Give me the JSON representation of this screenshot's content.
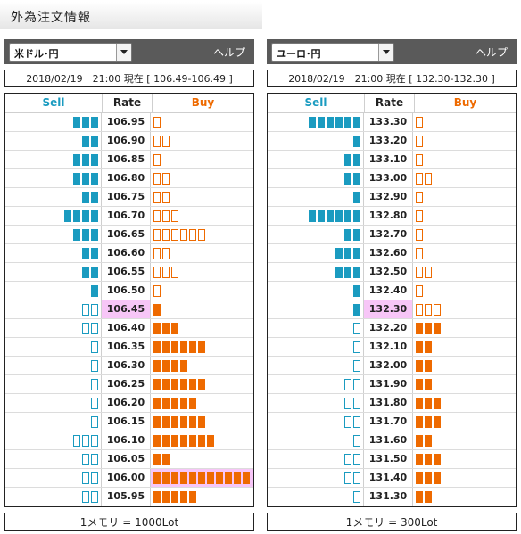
{
  "page": {
    "title": "外為注文情報"
  },
  "colors": {
    "sell": "#1a9bc0",
    "buy": "#ee6a00",
    "current_rate_bg": "#f7c6f7",
    "header_bg": "#5a5a5a"
  },
  "icons": {
    "dropdown": "chevron-down-icon"
  },
  "panels": [
    {
      "pair": "米ドル･円",
      "help": "ヘルプ",
      "status": "2018/02/19　21:00 現在 [ 106.49-106.49 ]",
      "headers": {
        "sell": "Sell",
        "rate": "Rate",
        "buy": "Buy"
      },
      "footer": "1メモリ = 1000Lot",
      "rows": [
        {
          "rate": "106.95",
          "sell": 3,
          "sell_style": "filled",
          "buy": 1,
          "buy_style": "outline"
        },
        {
          "rate": "106.90",
          "sell": 2,
          "sell_style": "filled",
          "buy": 2,
          "buy_style": "outline"
        },
        {
          "rate": "106.85",
          "sell": 3,
          "sell_style": "filled",
          "buy": 1,
          "buy_style": "outline"
        },
        {
          "rate": "106.80",
          "sell": 3,
          "sell_style": "filled",
          "buy": 2,
          "buy_style": "outline"
        },
        {
          "rate": "106.75",
          "sell": 2,
          "sell_style": "filled",
          "buy": 2,
          "buy_style": "outline"
        },
        {
          "rate": "106.70",
          "sell": 4,
          "sell_style": "filled",
          "buy": 3,
          "buy_style": "outline"
        },
        {
          "rate": "106.65",
          "sell": 3,
          "sell_style": "filled",
          "buy": 6,
          "buy_style": "outline"
        },
        {
          "rate": "106.60",
          "sell": 2,
          "sell_style": "filled",
          "buy": 2,
          "buy_style": "outline"
        },
        {
          "rate": "106.55",
          "sell": 2,
          "sell_style": "filled",
          "buy": 3,
          "buy_style": "outline"
        },
        {
          "rate": "106.50",
          "sell": 1,
          "sell_style": "filled",
          "buy": 1,
          "buy_style": "outline"
        },
        {
          "rate": "106.45",
          "sell": 2,
          "sell_style": "outline",
          "buy": 1,
          "buy_style": "filled",
          "current": true
        },
        {
          "rate": "106.40",
          "sell": 2,
          "sell_style": "outline",
          "buy": 3,
          "buy_style": "filled"
        },
        {
          "rate": "106.35",
          "sell": 1,
          "sell_style": "outline",
          "buy": 6,
          "buy_style": "filled"
        },
        {
          "rate": "106.30",
          "sell": 1,
          "sell_style": "outline",
          "buy": 4,
          "buy_style": "filled"
        },
        {
          "rate": "106.25",
          "sell": 1,
          "sell_style": "outline",
          "buy": 6,
          "buy_style": "filled"
        },
        {
          "rate": "106.20",
          "sell": 1,
          "sell_style": "outline",
          "buy": 5,
          "buy_style": "filled"
        },
        {
          "rate": "106.15",
          "sell": 1,
          "sell_style": "outline",
          "buy": 6,
          "buy_style": "filled"
        },
        {
          "rate": "106.10",
          "sell": 3,
          "sell_style": "outline",
          "buy": 7,
          "buy_style": "filled"
        },
        {
          "rate": "106.05",
          "sell": 2,
          "sell_style": "outline",
          "buy": 2,
          "buy_style": "filled"
        },
        {
          "rate": "106.00",
          "sell": 2,
          "sell_style": "outline",
          "buy": 11,
          "buy_style": "filled",
          "highlight": true
        },
        {
          "rate": "105.95",
          "sell": 2,
          "sell_style": "outline",
          "buy": 5,
          "buy_style": "filled"
        }
      ]
    },
    {
      "pair": "ユーロ･円",
      "help": "ヘルプ",
      "status": "2018/02/19　21:00 現在 [ 132.30-132.30 ]",
      "headers": {
        "sell": "Sell",
        "rate": "Rate",
        "buy": "Buy"
      },
      "footer": "1メモリ = 300Lot",
      "rows": [
        {
          "rate": "133.30",
          "sell": 6,
          "sell_style": "filled",
          "buy": 1,
          "buy_style": "outline"
        },
        {
          "rate": "133.20",
          "sell": 1,
          "sell_style": "filled",
          "buy": 1,
          "buy_style": "outline"
        },
        {
          "rate": "133.10",
          "sell": 2,
          "sell_style": "filled",
          "buy": 1,
          "buy_style": "outline"
        },
        {
          "rate": "133.00",
          "sell": 2,
          "sell_style": "filled",
          "buy": 2,
          "buy_style": "outline"
        },
        {
          "rate": "132.90",
          "sell": 1,
          "sell_style": "filled",
          "buy": 1,
          "buy_style": "outline"
        },
        {
          "rate": "132.80",
          "sell": 6,
          "sell_style": "filled",
          "buy": 1,
          "buy_style": "outline"
        },
        {
          "rate": "132.70",
          "sell": 2,
          "sell_style": "filled",
          "buy": 1,
          "buy_style": "outline"
        },
        {
          "rate": "132.60",
          "sell": 3,
          "sell_style": "filled",
          "buy": 1,
          "buy_style": "outline"
        },
        {
          "rate": "132.50",
          "sell": 3,
          "sell_style": "filled",
          "buy": 2,
          "buy_style": "outline"
        },
        {
          "rate": "132.40",
          "sell": 1,
          "sell_style": "filled",
          "buy": 1,
          "buy_style": "outline"
        },
        {
          "rate": "132.30",
          "sell": 1,
          "sell_style": "filled",
          "buy": 3,
          "buy_style": "outline",
          "current": true
        },
        {
          "rate": "132.20",
          "sell": 1,
          "sell_style": "outline",
          "buy": 3,
          "buy_style": "filled"
        },
        {
          "rate": "132.10",
          "sell": 1,
          "sell_style": "outline",
          "buy": 2,
          "buy_style": "filled"
        },
        {
          "rate": "132.00",
          "sell": 1,
          "sell_style": "outline",
          "buy": 2,
          "buy_style": "filled"
        },
        {
          "rate": "131.90",
          "sell": 2,
          "sell_style": "outline",
          "buy": 2,
          "buy_style": "filled"
        },
        {
          "rate": "131.80",
          "sell": 2,
          "sell_style": "outline",
          "buy": 3,
          "buy_style": "filled"
        },
        {
          "rate": "131.70",
          "sell": 2,
          "sell_style": "outline",
          "buy": 3,
          "buy_style": "filled"
        },
        {
          "rate": "131.60",
          "sell": 1,
          "sell_style": "outline",
          "buy": 2,
          "buy_style": "filled"
        },
        {
          "rate": "131.50",
          "sell": 2,
          "sell_style": "outline",
          "buy": 3,
          "buy_style": "filled"
        },
        {
          "rate": "131.40",
          "sell": 2,
          "sell_style": "outline",
          "buy": 3,
          "buy_style": "filled"
        },
        {
          "rate": "131.30",
          "sell": 1,
          "sell_style": "outline",
          "buy": 2,
          "buy_style": "filled"
        }
      ]
    }
  ]
}
